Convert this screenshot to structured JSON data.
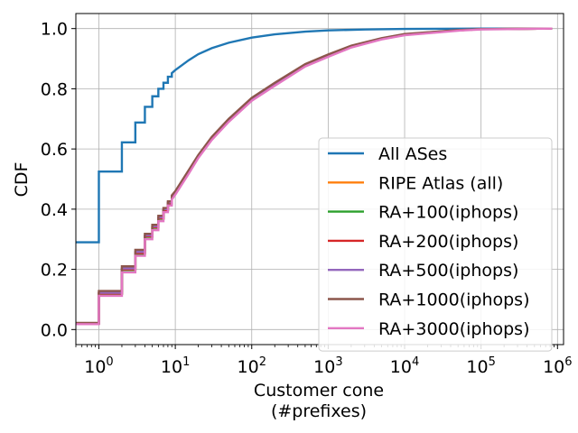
{
  "chart_data": {
    "type": "line",
    "xscale": "log",
    "xlabel": "Customer cone",
    "xlabel_sub": "(#prefixes)",
    "ylabel": "CDF",
    "xlim": [
      0.5,
      1200000
    ],
    "ylim": [
      -0.05,
      1.05
    ],
    "grid": true,
    "legend_position": "lower-right",
    "x_ticks": [
      {
        "value": 1,
        "base": "10",
        "exp": "0"
      },
      {
        "value": 10,
        "base": "10",
        "exp": "1"
      },
      {
        "value": 100,
        "base": "10",
        "exp": "2"
      },
      {
        "value": 1000,
        "base": "10",
        "exp": "3"
      },
      {
        "value": 10000,
        "base": "10",
        "exp": "4"
      },
      {
        "value": 100000,
        "base": "10",
        "exp": "5"
      },
      {
        "value": 1000000,
        "base": "10",
        "exp": "6"
      }
    ],
    "y_ticks": [
      {
        "value": 0.0,
        "label": "0.0"
      },
      {
        "value": 0.2,
        "label": "0.2"
      },
      {
        "value": 0.4,
        "label": "0.4"
      },
      {
        "value": 0.6,
        "label": "0.6"
      },
      {
        "value": 0.8,
        "label": "0.8"
      },
      {
        "value": 1.0,
        "label": "1.0"
      }
    ],
    "series": [
      {
        "name": "All ASes",
        "color": "#1f77b4",
        "points": [
          [
            0.5,
            0.29
          ],
          [
            1,
            0.29
          ],
          [
            1,
            0.525
          ],
          [
            2,
            0.525
          ],
          [
            2,
            0.622
          ],
          [
            3,
            0.622
          ],
          [
            3,
            0.688
          ],
          [
            4,
            0.688
          ],
          [
            4,
            0.74
          ],
          [
            5,
            0.74
          ],
          [
            5,
            0.775
          ],
          [
            6,
            0.775
          ],
          [
            6,
            0.8
          ],
          [
            7,
            0.8
          ],
          [
            7,
            0.82
          ],
          [
            8,
            0.82
          ],
          [
            8,
            0.84
          ],
          [
            9,
            0.84
          ],
          [
            9,
            0.852
          ],
          [
            10,
            0.862
          ],
          [
            15,
            0.895
          ],
          [
            20,
            0.915
          ],
          [
            30,
            0.935
          ],
          [
            50,
            0.953
          ],
          [
            100,
            0.97
          ],
          [
            200,
            0.981
          ],
          [
            500,
            0.99
          ],
          [
            1000,
            0.994
          ],
          [
            3000,
            0.997
          ],
          [
            10000,
            0.999
          ],
          [
            100000,
            1.0
          ],
          [
            850000,
            1.0
          ]
        ]
      },
      {
        "name": "RIPE Atlas (all)",
        "color": "#ff7f0e",
        "points": [
          [
            0.5,
            0.02
          ],
          [
            1,
            0.02
          ],
          [
            1,
            0.12
          ],
          [
            2,
            0.12
          ],
          [
            2,
            0.2
          ],
          [
            3,
            0.2
          ],
          [
            3,
            0.255
          ],
          [
            4,
            0.255
          ],
          [
            4,
            0.31
          ],
          [
            5,
            0.31
          ],
          [
            5,
            0.34
          ],
          [
            6,
            0.34
          ],
          [
            6,
            0.37
          ],
          [
            7,
            0.37
          ],
          [
            7,
            0.398
          ],
          [
            8,
            0.398
          ],
          [
            8,
            0.42
          ],
          [
            9,
            0.42
          ],
          [
            9,
            0.44
          ],
          [
            10,
            0.455
          ],
          [
            15,
            0.525
          ],
          [
            20,
            0.575
          ],
          [
            30,
            0.635
          ],
          [
            50,
            0.695
          ],
          [
            100,
            0.765
          ],
          [
            200,
            0.815
          ],
          [
            500,
            0.878
          ],
          [
            1000,
            0.91
          ],
          [
            2000,
            0.94
          ],
          [
            5000,
            0.966
          ],
          [
            10000,
            0.98
          ],
          [
            50000,
            0.994
          ],
          [
            100000,
            0.998
          ],
          [
            850000,
            1.0
          ]
        ]
      },
      {
        "name": "RA+100(iphops)",
        "color": "#2ca02c",
        "points": [
          [
            0.5,
            0.02
          ],
          [
            1,
            0.02
          ],
          [
            1,
            0.118
          ],
          [
            2,
            0.118
          ],
          [
            2,
            0.198
          ],
          [
            3,
            0.198
          ],
          [
            3,
            0.252
          ],
          [
            4,
            0.252
          ],
          [
            4,
            0.308
          ],
          [
            5,
            0.308
          ],
          [
            5,
            0.338
          ],
          [
            6,
            0.338
          ],
          [
            6,
            0.368
          ],
          [
            7,
            0.368
          ],
          [
            7,
            0.396
          ],
          [
            8,
            0.396
          ],
          [
            8,
            0.418
          ],
          [
            9,
            0.418
          ],
          [
            9,
            0.438
          ],
          [
            10,
            0.452
          ],
          [
            15,
            0.522
          ],
          [
            20,
            0.572
          ],
          [
            30,
            0.632
          ],
          [
            50,
            0.692
          ],
          [
            100,
            0.762
          ],
          [
            200,
            0.812
          ],
          [
            500,
            0.876
          ],
          [
            1000,
            0.908
          ],
          [
            2000,
            0.938
          ],
          [
            5000,
            0.965
          ],
          [
            10000,
            0.979
          ],
          [
            50000,
            0.994
          ],
          [
            100000,
            0.998
          ],
          [
            850000,
            1.0
          ]
        ]
      },
      {
        "name": "RA+200(iphops)",
        "color": "#d62728",
        "points": [
          [
            0.5,
            0.02
          ],
          [
            1,
            0.02
          ],
          [
            1,
            0.12
          ],
          [
            2,
            0.12
          ],
          [
            2,
            0.2
          ],
          [
            3,
            0.2
          ],
          [
            3,
            0.254
          ],
          [
            4,
            0.254
          ],
          [
            4,
            0.31
          ],
          [
            5,
            0.31
          ],
          [
            5,
            0.34
          ],
          [
            6,
            0.34
          ],
          [
            6,
            0.37
          ],
          [
            7,
            0.37
          ],
          [
            7,
            0.397
          ],
          [
            8,
            0.397
          ],
          [
            8,
            0.42
          ],
          [
            9,
            0.42
          ],
          [
            9,
            0.44
          ],
          [
            10,
            0.454
          ],
          [
            15,
            0.523
          ],
          [
            20,
            0.573
          ],
          [
            30,
            0.633
          ],
          [
            50,
            0.693
          ],
          [
            100,
            0.763
          ],
          [
            200,
            0.813
          ],
          [
            500,
            0.877
          ],
          [
            1000,
            0.909
          ],
          [
            2000,
            0.939
          ],
          [
            5000,
            0.965
          ],
          [
            10000,
            0.979
          ],
          [
            50000,
            0.994
          ],
          [
            100000,
            0.998
          ],
          [
            850000,
            1.0
          ]
        ]
      },
      {
        "name": "RA+500(iphops)",
        "color": "#9467bd",
        "points": [
          [
            0.5,
            0.02
          ],
          [
            1,
            0.02
          ],
          [
            1,
            0.122
          ],
          [
            2,
            0.122
          ],
          [
            2,
            0.203
          ],
          [
            3,
            0.203
          ],
          [
            3,
            0.258
          ],
          [
            4,
            0.258
          ],
          [
            4,
            0.313
          ],
          [
            5,
            0.313
          ],
          [
            5,
            0.343
          ],
          [
            6,
            0.343
          ],
          [
            6,
            0.373
          ],
          [
            7,
            0.373
          ],
          [
            7,
            0.4
          ],
          [
            8,
            0.4
          ],
          [
            8,
            0.423
          ],
          [
            9,
            0.423
          ],
          [
            9,
            0.443
          ],
          [
            10,
            0.458
          ],
          [
            15,
            0.528
          ],
          [
            20,
            0.578
          ],
          [
            30,
            0.638
          ],
          [
            50,
            0.698
          ],
          [
            100,
            0.768
          ],
          [
            200,
            0.818
          ],
          [
            500,
            0.88
          ],
          [
            1000,
            0.912
          ],
          [
            2000,
            0.941
          ],
          [
            5000,
            0.967
          ],
          [
            10000,
            0.981
          ],
          [
            50000,
            0.995
          ],
          [
            100000,
            0.998
          ],
          [
            850000,
            1.0
          ]
        ]
      },
      {
        "name": "RA+1000(iphops)",
        "color": "#8c564b",
        "points": [
          [
            0.5,
            0.022
          ],
          [
            1,
            0.022
          ],
          [
            1,
            0.128
          ],
          [
            2,
            0.128
          ],
          [
            2,
            0.21
          ],
          [
            3,
            0.21
          ],
          [
            3,
            0.265
          ],
          [
            4,
            0.265
          ],
          [
            4,
            0.318
          ],
          [
            5,
            0.318
          ],
          [
            5,
            0.348
          ],
          [
            6,
            0.348
          ],
          [
            6,
            0.378
          ],
          [
            7,
            0.378
          ],
          [
            7,
            0.404
          ],
          [
            8,
            0.404
          ],
          [
            8,
            0.426
          ],
          [
            9,
            0.426
          ],
          [
            9,
            0.446
          ],
          [
            10,
            0.46
          ],
          [
            15,
            0.53
          ],
          [
            20,
            0.58
          ],
          [
            30,
            0.64
          ],
          [
            50,
            0.7
          ],
          [
            100,
            0.77
          ],
          [
            200,
            0.82
          ],
          [
            500,
            0.882
          ],
          [
            1000,
            0.914
          ],
          [
            2000,
            0.943
          ],
          [
            5000,
            0.968
          ],
          [
            10000,
            0.982
          ],
          [
            50000,
            0.995
          ],
          [
            100000,
            0.998
          ],
          [
            850000,
            1.0
          ]
        ]
      },
      {
        "name": "RA+3000(iphops)",
        "color": "#e377c2",
        "points": [
          [
            0.5,
            0.018
          ],
          [
            1,
            0.018
          ],
          [
            1,
            0.112
          ],
          [
            2,
            0.112
          ],
          [
            2,
            0.19
          ],
          [
            3,
            0.19
          ],
          [
            3,
            0.245
          ],
          [
            4,
            0.245
          ],
          [
            4,
            0.3
          ],
          [
            5,
            0.3
          ],
          [
            5,
            0.33
          ],
          [
            6,
            0.33
          ],
          [
            6,
            0.36
          ],
          [
            7,
            0.36
          ],
          [
            7,
            0.39
          ],
          [
            8,
            0.39
          ],
          [
            8,
            0.412
          ],
          [
            9,
            0.412
          ],
          [
            9,
            0.432
          ],
          [
            10,
            0.448
          ],
          [
            15,
            0.518
          ],
          [
            20,
            0.57
          ],
          [
            30,
            0.63
          ],
          [
            50,
            0.69
          ],
          [
            100,
            0.76
          ],
          [
            200,
            0.81
          ],
          [
            500,
            0.874
          ],
          [
            1000,
            0.906
          ],
          [
            2000,
            0.937
          ],
          [
            5000,
            0.964
          ],
          [
            10000,
            0.978
          ],
          [
            50000,
            0.993
          ],
          [
            100000,
            0.997
          ],
          [
            850000,
            1.0
          ]
        ]
      }
    ]
  }
}
